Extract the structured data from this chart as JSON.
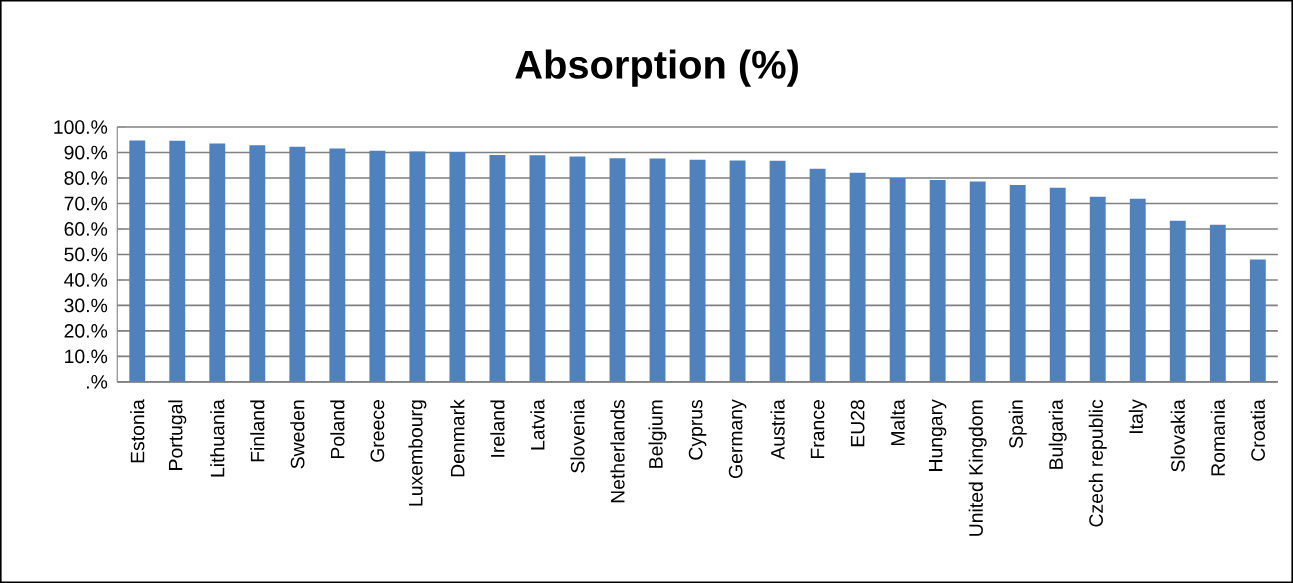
{
  "chart_data": {
    "type": "bar",
    "title": "Absorption (%)",
    "categories": [
      "Estonia",
      "Portugal",
      "Lithuania",
      "Finland",
      "Sweden",
      "Poland",
      "Greece",
      "Luxembourg",
      "Denmark",
      "Ireland",
      "Latvia",
      "Slovenia",
      "Netherlands",
      "Belgium",
      "Cyprus",
      "Germany",
      "Austria",
      "France",
      "EU28",
      "Malta",
      "Hungary",
      "United Kingdom",
      "Spain",
      "Bulgaria",
      "Czech republic",
      "Italy",
      "Slovakia",
      "Romania",
      "Croatia"
    ],
    "values": [
      94.7,
      94.6,
      93.5,
      92.9,
      92.3,
      91.6,
      90.7,
      90.4,
      90.2,
      89.0,
      88.9,
      88.4,
      87.8,
      87.7,
      87.2,
      86.9,
      86.8,
      83.6,
      82.1,
      80.0,
      79.2,
      78.6,
      77.3,
      76.2,
      72.6,
      71.9,
      63.2,
      61.7,
      48.0
    ],
    "color": "#4f81bd",
    "ylim": [
      0,
      100
    ],
    "yticks": [
      {
        "value": 0,
        "label": ".%"
      },
      {
        "value": 10,
        "label": "10.%"
      },
      {
        "value": 20,
        "label": "20.%"
      },
      {
        "value": 30,
        "label": "30.%"
      },
      {
        "value": 40,
        "label": "40.%"
      },
      {
        "value": 50,
        "label": "50.%"
      },
      {
        "value": 60,
        "label": "60.%"
      },
      {
        "value": 70,
        "label": "70.%"
      },
      {
        "value": 80,
        "label": "80.%"
      },
      {
        "value": 90,
        "label": "90.%"
      },
      {
        "value": 100,
        "label": "100.%"
      }
    ],
    "grid": "y"
  }
}
